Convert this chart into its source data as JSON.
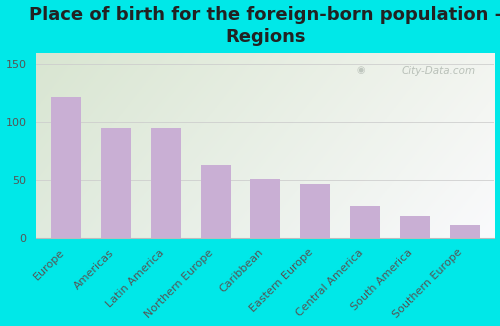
{
  "categories": [
    "Europe",
    "Americas",
    "Latin America",
    "Northern Europe",
    "Caribbean",
    "Eastern Europe",
    "Central America",
    "South America",
    "Southern Europe"
  ],
  "values": [
    122,
    95,
    95,
    63,
    51,
    46,
    27,
    19,
    11
  ],
  "bar_color": "#c9afd4",
  "title": "Place of birth for the foreign-born population -\nRegions",
  "ylim": [
    0,
    160
  ],
  "yticks": [
    0,
    50,
    100,
    150
  ],
  "background_outer": "#00e8e8",
  "watermark": "City-Data.com",
  "title_fontsize": 13,
  "tick_fontsize": 8,
  "grid_color": "#cccccc",
  "gradient_colors": [
    "#e0edd8",
    "#f4f7ee",
    "#f8f8f2",
    "#ffffff"
  ],
  "spine_color": "#bbbbbb"
}
